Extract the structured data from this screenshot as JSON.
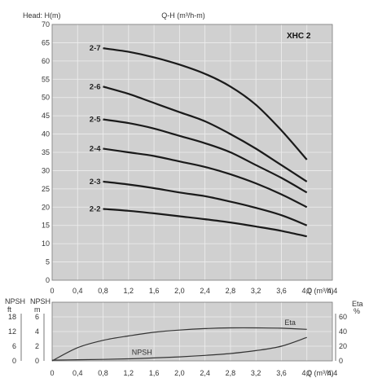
{
  "chart_data": [
    {
      "type": "line",
      "title": "Q-H (m³/h-m)",
      "badge": "XHC 2",
      "ylabel": "Head: H(m)",
      "xlabel": "Q (m³/h)",
      "xlim": [
        0,
        4.4
      ],
      "ylim": [
        0,
        70
      ],
      "x_ticks": [
        "0",
        "0,4",
        "0,8",
        "1,2",
        "1,6",
        "2,0",
        "2,4",
        "2,8",
        "3,2",
        "3,6",
        "4,0",
        "4,4"
      ],
      "y_ticks": [
        "0",
        "5",
        "10",
        "15",
        "20",
        "25",
        "30",
        "35",
        "40",
        "45",
        "50",
        "55",
        "60",
        "65",
        "70"
      ],
      "grid": true,
      "series": [
        {
          "name": "2-7",
          "x": [
            0.8,
            1.2,
            1.6,
            2.0,
            2.4,
            2.8,
            3.2,
            3.6,
            4.0
          ],
          "y": [
            63.5,
            62.5,
            61.0,
            59.0,
            56.5,
            53.0,
            48.0,
            41.0,
            33.0
          ]
        },
        {
          "name": "2-6",
          "x": [
            0.8,
            1.2,
            1.6,
            2.0,
            2.4,
            2.8,
            3.2,
            3.6,
            4.0
          ],
          "y": [
            53.0,
            51.0,
            48.5,
            46.0,
            43.5,
            40.0,
            36.0,
            31.5,
            27.0
          ]
        },
        {
          "name": "2-5",
          "x": [
            0.8,
            1.2,
            1.6,
            2.0,
            2.4,
            2.8,
            3.2,
            3.6,
            4.0
          ],
          "y": [
            44.0,
            43.0,
            41.5,
            39.5,
            37.5,
            35.0,
            31.5,
            28.0,
            24.0
          ]
        },
        {
          "name": "2-4",
          "x": [
            0.8,
            1.2,
            1.6,
            2.0,
            2.4,
            2.8,
            3.2,
            3.6,
            4.0
          ],
          "y": [
            36.0,
            35.0,
            34.0,
            32.5,
            31.0,
            29.0,
            26.5,
            23.5,
            20.0
          ]
        },
        {
          "name": "2-3",
          "x": [
            0.8,
            1.2,
            1.6,
            2.0,
            2.4,
            2.8,
            3.2,
            3.6,
            4.0
          ],
          "y": [
            27.0,
            26.2,
            25.2,
            24.0,
            23.0,
            21.5,
            19.8,
            17.8,
            15.0
          ]
        },
        {
          "name": "2-2",
          "x": [
            0.8,
            1.2,
            1.6,
            2.0,
            2.4,
            2.8,
            3.2,
            3.6,
            4.0
          ],
          "y": [
            19.5,
            19.0,
            18.3,
            17.5,
            16.7,
            15.8,
            14.7,
            13.5,
            12.0
          ]
        }
      ]
    },
    {
      "type": "line",
      "xlabel": "Q (m³/h)",
      "xlim": [
        0,
        4.4
      ],
      "x_ticks": [
        "0",
        "0,4",
        "0,8",
        "1,2",
        "1,6",
        "2,0",
        "2,4",
        "2,8",
        "3,2",
        "3,6",
        "4,0",
        "4,4"
      ],
      "left_axes": [
        {
          "label": "NPSH",
          "unit": "ft",
          "ticks": [
            "0",
            "6",
            "12",
            "18"
          ]
        },
        {
          "label": "NPSH",
          "unit": "m",
          "ticks": [
            "0",
            "2",
            "4",
            "6"
          ],
          "range": [
            0,
            6
          ]
        }
      ],
      "right_axis": {
        "label": "Eta",
        "unit": "%",
        "ticks": [
          "0",
          "20",
          "40",
          "60"
        ],
        "range": [
          0,
          60
        ]
      },
      "grid": true,
      "series": [
        {
          "name": "Eta",
          "axis": "right",
          "x": [
            0,
            0.4,
            0.8,
            1.2,
            1.6,
            2.0,
            2.4,
            2.8,
            3.2,
            3.6,
            4.0
          ],
          "y": [
            0,
            18,
            28,
            34,
            39,
            42,
            44,
            45,
            45,
            44.5,
            43
          ]
        },
        {
          "name": "NPSH",
          "axis": "left",
          "x": [
            0,
            0.4,
            0.8,
            1.2,
            1.6,
            2.0,
            2.4,
            2.8,
            3.2,
            3.6,
            4.0
          ],
          "y": [
            0.1,
            0.15,
            0.2,
            0.28,
            0.4,
            0.55,
            0.75,
            1.0,
            1.4,
            2.0,
            3.2
          ]
        }
      ]
    }
  ]
}
